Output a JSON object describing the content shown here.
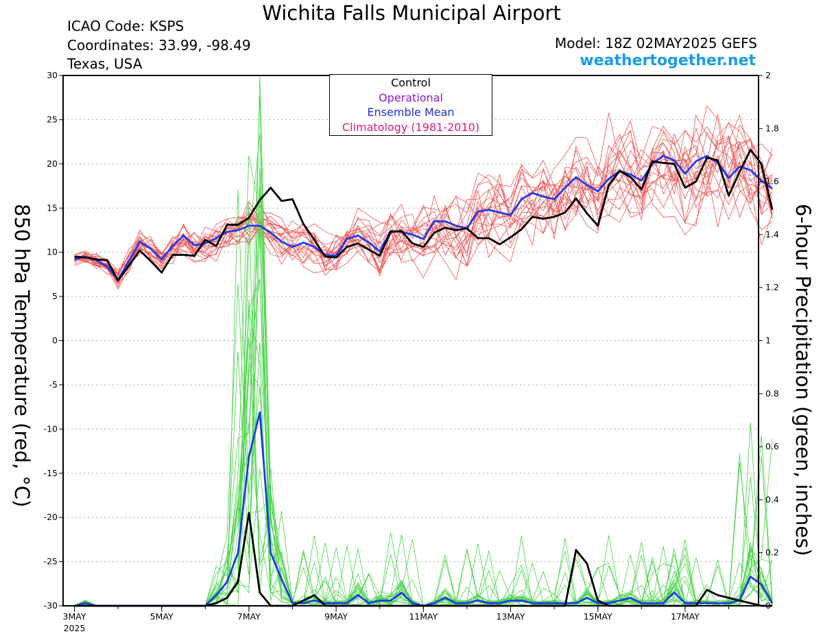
{
  "header": {
    "title": "Wichita Falls Municipal Airport",
    "icao": "ICAO Code: KSPS",
    "coordinates": "Coordinates: 33.99, -98.49",
    "region": "Texas, USA",
    "model": "Model: 18Z 02MAY2025 GEFS",
    "site": "weathertogether.net"
  },
  "legend": {
    "items": [
      {
        "label": "Control",
        "color": "#000000"
      },
      {
        "label": "Operational",
        "color": "#8a1ad8"
      },
      {
        "label": "Ensemble Mean",
        "color": "#1f2ee6"
      },
      {
        "label": "Climatology (1981-2010)",
        "color": "#e0177a"
      }
    ]
  },
  "colors": {
    "temperature_members": "#f05050",
    "precip_members": "#46d246",
    "ensemble_mean": "#1f3be8",
    "control": "#000000",
    "link": "#1a9ce8"
  },
  "chart_data": {
    "type": "line",
    "title": "Wichita Falls Municipal Airport",
    "ylabel_left": "850 hPa Temperature (red, °C)",
    "ylabel_right": "6-hour Precipitation (green, inches)",
    "ylim_left": [
      -30,
      30
    ],
    "ylim_right": [
      0,
      2
    ],
    "yticks_left": [
      "30",
      "25",
      "20",
      "15",
      "10",
      "5",
      "0",
      "-5",
      "-10",
      "-15",
      "-20",
      "-25",
      "-30"
    ],
    "yticks_right": [
      "2",
      "1.8",
      "1.6",
      "1.4",
      "1.2",
      "1",
      "0.8",
      "0.6",
      "0.4",
      "0.2",
      "0"
    ],
    "xlim": [
      "2025-05-03T00Z",
      "2025-05-18T18Z"
    ],
    "xticks": [
      "3MAY",
      "5MAY",
      "7MAY",
      "9MAY",
      "11MAY",
      "13MAY",
      "15MAY",
      "17MAY"
    ],
    "xtick_year": "2025",
    "grid": "horizontal dotted",
    "step_hours": 6,
    "temperature_control": [
      9.5,
      9.4,
      9.2,
      9.1,
      6.8,
      8.5,
      10.2,
      9.0,
      7.7,
      9.7,
      9.7,
      9.6,
      11.4,
      10.7,
      13.1,
      13.1,
      13.9,
      15.9,
      17.3,
      15.8,
      16.0,
      13.2,
      11.4,
      9.5,
      9.4,
      10.6,
      11.0,
      10.3,
      9.6,
      12.3,
      12.4,
      11.0,
      10.6,
      12.2,
      12.8,
      12.5,
      12.7,
      11.6,
      11.6,
      10.9,
      11.7,
      12.6,
      14.0,
      13.8,
      14.0,
      14.5,
      16.1,
      14.4,
      13.0,
      17.6,
      19.2,
      18.5,
      17.1,
      20.3,
      20.1,
      20.0,
      17.3,
      18.0,
      20.7,
      20.4,
      16.4,
      19.1,
      21.6,
      20.0,
      14.8
    ],
    "temperature_ensemble_mean": [
      9.2,
      9.5,
      9.1,
      8.4,
      6.9,
      9.0,
      11.2,
      10.4,
      9.2,
      10.7,
      11.9,
      10.8,
      11.0,
      11.6,
      12.3,
      12.5,
      13.0,
      13.0,
      12.2,
      11.2,
      10.6,
      11.1,
      10.6,
      9.7,
      9.6,
      11.5,
      11.9,
      11.1,
      10.1,
      12.4,
      12.3,
      12.0,
      11.5,
      13.5,
      13.5,
      13.0,
      12.7,
      14.6,
      14.8,
      14.5,
      14.2,
      16.0,
      16.7,
      16.3,
      16.0,
      17.3,
      18.5,
      17.6,
      16.9,
      18.3,
      19.2,
      18.8,
      18.1,
      20.0,
      20.9,
      20.4,
      18.9,
      20.3,
      20.9,
      20.1,
      18.4,
      19.7,
      19.3,
      18.1,
      17.2
    ],
    "precip_control": [
      0,
      0,
      0,
      0,
      0,
      0,
      0,
      0,
      0,
      0,
      0,
      0,
      0,
      0.01,
      0.03,
      0.09,
      0.35,
      0.05,
      0,
      0,
      0,
      0.02,
      0.04,
      0,
      0,
      0,
      0,
      0,
      0,
      0,
      0,
      0,
      0,
      0,
      0,
      0,
      0,
      0,
      0,
      0,
      0,
      0,
      0,
      0,
      0,
      0,
      0.21,
      0.16,
      0.02,
      0,
      0,
      0,
      0,
      0,
      0,
      0,
      0,
      0,
      0.06,
      0.04,
      0.03,
      0.02,
      0.01,
      0,
      0
    ],
    "precip_ensemble_mean": [
      0,
      0.01,
      0,
      0,
      0,
      0,
      0,
      0,
      0,
      0,
      0,
      0,
      0,
      0.04,
      0.09,
      0.2,
      0.56,
      0.73,
      0.2,
      0.1,
      0.01,
      0.01,
      0.02,
      0.01,
      0.01,
      0.01,
      0.04,
      0.01,
      0.02,
      0.02,
      0.05,
      0.01,
      0,
      0.01,
      0.03,
      0.01,
      0.01,
      0.02,
      0.01,
      0.01,
      0.02,
      0.02,
      0.01,
      0.01,
      0.01,
      0.01,
      0.01,
      0.03,
      0.01,
      0.01,
      0.02,
      0.03,
      0.01,
      0.01,
      0.01,
      0.05,
      0.01,
      0.01,
      0.01,
      0.01,
      0.01,
      0.02,
      0.11,
      0.08,
      0.01
    ]
  }
}
